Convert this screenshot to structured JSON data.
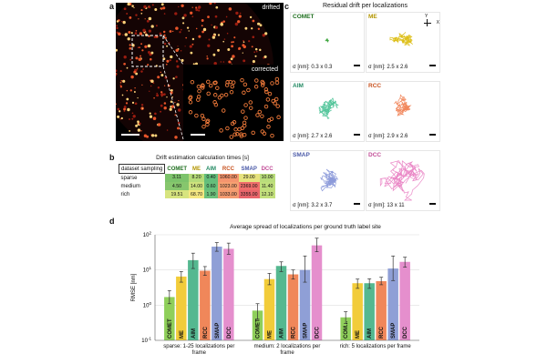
{
  "panel_a": {
    "letter": "a",
    "label_drifted": "drifted",
    "label_corrected": "corrected"
  },
  "panel_b": {
    "letter": "b",
    "title": "Drift estimation calculation times [s]",
    "corner_header": "dataset sampling",
    "columns": [
      "COMET",
      "ME",
      "AIM",
      "RCC",
      "SMAP",
      "DCC"
    ],
    "rows": [
      {
        "label": "sparse",
        "values": [
          "3.11",
          "8.20",
          "0.40",
          "1060.00",
          "29.00",
          "10.00"
        ]
      },
      {
        "label": "medium",
        "values": [
          "4.50",
          "14.00",
          "0.60",
          "1023.00",
          "2369.00",
          "11.40"
        ]
      },
      {
        "label": "rich",
        "values": [
          "19.51",
          "68.70",
          "1.90",
          "1033.00",
          "3355.00",
          "12.10"
        ]
      }
    ]
  },
  "panel_c": {
    "letter": "c",
    "title": "Residual drift per localizations",
    "axis_y": "Y",
    "axis_x": "X",
    "cells": [
      {
        "name": "COMET",
        "sigma": "σ [nm]: 0.3 x 0.3",
        "color": "#2e9e2e",
        "name_color": "#1f6f1f"
      },
      {
        "name": "ME",
        "sigma": "σ [nm]: 2.5 x 2.6",
        "color": "#d9b800",
        "name_color": "#b39500"
      },
      {
        "name": "AIM",
        "sigma": "σ [nm]: 2.7 x 2.6",
        "color": "#3fbf8f",
        "name_color": "#238a63"
      },
      {
        "name": "RCC",
        "sigma": "σ [nm]: 2.9 x 2.6",
        "color": "#f07a4a",
        "name_color": "#c8521f"
      },
      {
        "name": "SMAP",
        "sigma": "σ [nm]: 3.2 x 3.7",
        "color": "#7f8fd6",
        "name_color": "#4b5aa8"
      },
      {
        "name": "DCC",
        "sigma": "σ [nm]: 13 x 11",
        "color": "#e87ac0",
        "name_color": "#c24d97"
      }
    ]
  },
  "panel_d": {
    "letter": "d",
    "title": "Average spread of localizations per ground truth label site"
  },
  "chart_data": {
    "type": "bar",
    "title": "Average spread of localizations per ground truth label site",
    "ylabel": "RMSE [nm]",
    "xlabel": "",
    "yscale": "log",
    "ylim": [
      0.1,
      100
    ],
    "y_ticks": [
      "10^-1",
      "10^0",
      "10^1",
      "10^2"
    ],
    "series_names": [
      "COMET",
      "ME",
      "AIM",
      "RCC",
      "SMAP",
      "DCC"
    ],
    "series_colors": [
      "#8fcf5a",
      "#f2cc3a",
      "#55b890",
      "#f0875a",
      "#8f9fd6",
      "#e58fcd"
    ],
    "groups": [
      {
        "label": "sparse: 1-25 localizations per frame",
        "values": [
          1.7,
          6.5,
          19,
          9.5,
          46,
          40
        ],
        "err_low": [
          1.1,
          4.5,
          11,
          7,
          34,
          28
        ],
        "err_high": [
          2.6,
          9.0,
          30,
          12.5,
          60,
          58
        ]
      },
      {
        "label": "medium: 2 localizations per frame",
        "values": [
          0.7,
          5.5,
          13,
          7.5,
          10,
          50
        ],
        "err_low": [
          0.4,
          3.8,
          9,
          5.5,
          4.5,
          33
        ],
        "err_high": [
          1.1,
          8.0,
          17,
          10,
          25,
          80
        ]
      },
      {
        "label": "rich: 5 localizations per frame",
        "values": [
          0.45,
          4.2,
          4.2,
          4.8,
          11,
          17
        ],
        "err_low": [
          0.3,
          3.0,
          3.0,
          3.8,
          5,
          12
        ],
        "err_high": [
          0.65,
          5.5,
          5.6,
          6.2,
          25,
          23
        ]
      }
    ],
    "bar_labels": [
      [
        "COMET",
        "ME",
        "AIM",
        "RCC",
        "SMAP",
        "DCC"
      ],
      [
        "COMET",
        "ME",
        "AIM",
        "RCC",
        "SMAP",
        "DCC"
      ],
      [
        "COM...",
        "ME",
        "AIM",
        "RCC",
        "SMAP",
        "DCC"
      ]
    ]
  }
}
